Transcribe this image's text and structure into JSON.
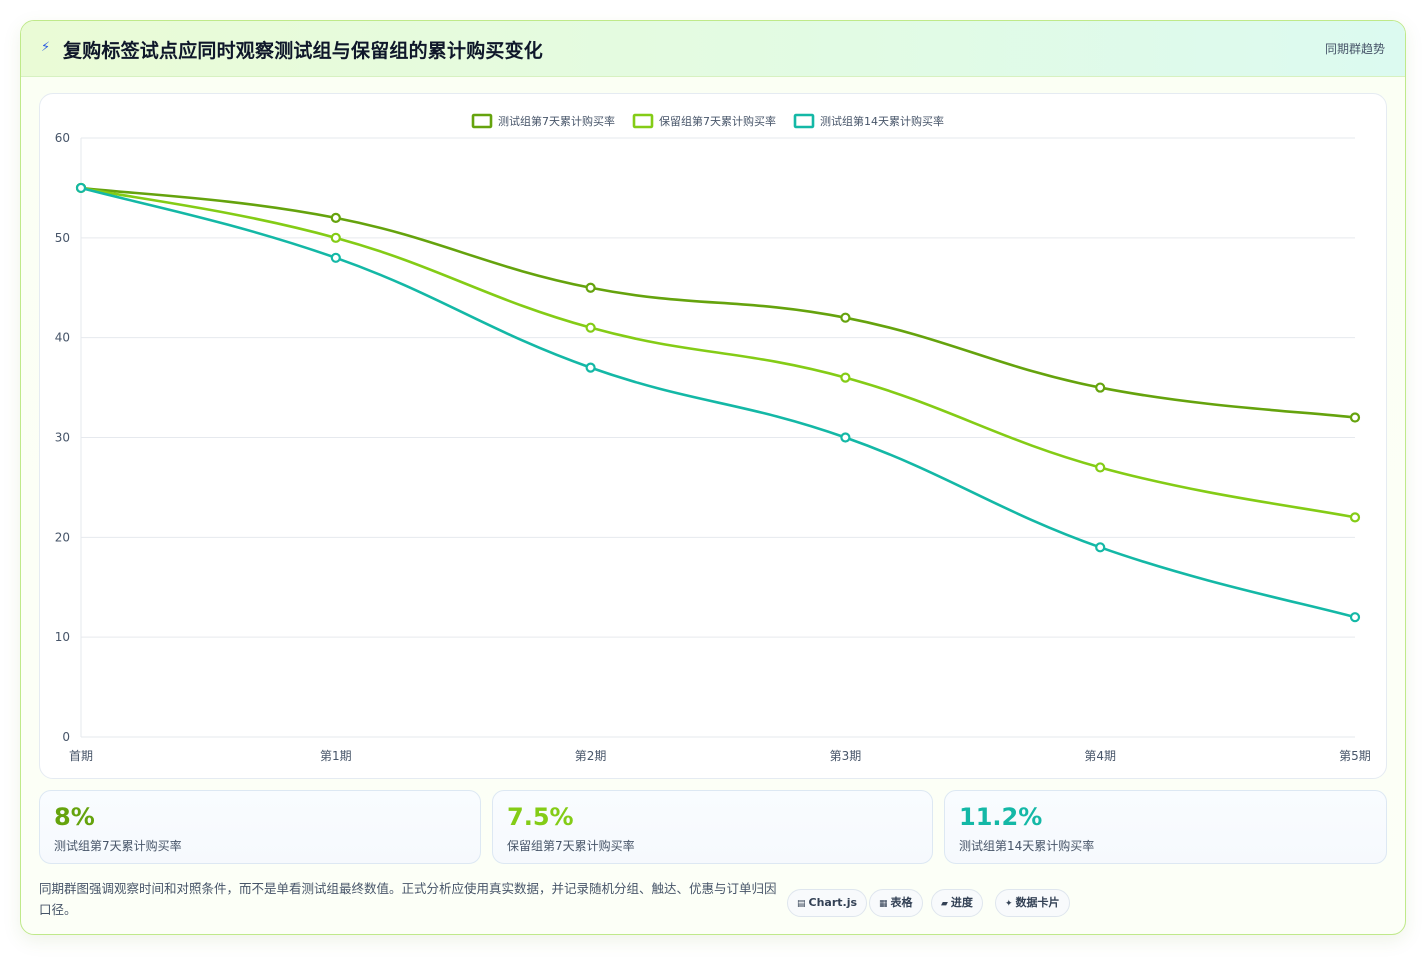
{
  "header": {
    "title": "复购标签试点应同时观察测试组与保留组的累计购买变化",
    "tag": "同期群趋势"
  },
  "chart_data": {
    "type": "line",
    "categories": [
      "首期",
      "第1期",
      "第2期",
      "第3期",
      "第4期",
      "第5期"
    ],
    "series": [
      {
        "name": "测试组第7天累计购买率",
        "color": "#65a30d",
        "values": [
          55,
          52,
          45,
          42,
          35,
          32
        ]
      },
      {
        "name": "保留组第7天累计购买率",
        "color": "#84cc16",
        "values": [
          55,
          50,
          41,
          36,
          27,
          22
        ]
      },
      {
        "name": "测试组第14天累计购买率",
        "color": "#14b8a6",
        "values": [
          55,
          48,
          37,
          30,
          19,
          12
        ]
      }
    ],
    "ylim": [
      0,
      60
    ],
    "yticks": [
      0,
      10,
      20,
      30,
      40,
      50,
      60
    ],
    "grid": true,
    "legend": "top-center"
  },
  "stats": [
    {
      "value": "8%",
      "label": "测试组第7天累计购买率",
      "color": "#65a30d"
    },
    {
      "value": "7.5%",
      "label": "保留组第7天累计购买率",
      "color": "#84cc16"
    },
    {
      "value": "11.2%",
      "label": "测试组第14天累计购买率",
      "color": "#14b8a6"
    }
  ],
  "footer": {
    "note": "同期群图强调观察时间和对照条件，而不是单看测试组最终数值。正式分析应使用真实数据，并记录随机分组、触达、优惠与订单归因口径。",
    "chips": [
      {
        "icon": "chart-icon",
        "glyph": "▤",
        "label": "Chart.js"
      },
      {
        "icon": "table-icon",
        "glyph": "▦",
        "label": "表格"
      },
      {
        "icon": "progress-icon",
        "glyph": "▰",
        "label": "进度"
      },
      {
        "icon": "sparkle-icon",
        "glyph": "✦",
        "label": "数据卡片"
      }
    ]
  }
}
